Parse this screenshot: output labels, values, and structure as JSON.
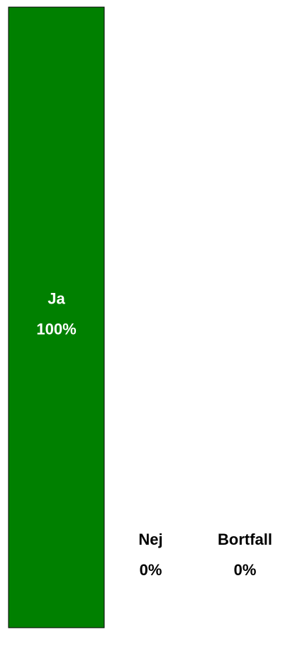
{
  "chart_data": {
    "type": "bar",
    "categories": [
      "Ja",
      "Nej",
      "Bortfall"
    ],
    "values": [
      100,
      0,
      0
    ],
    "value_labels": [
      "100%",
      "0%",
      "0%"
    ],
    "color": "#008000",
    "ylim": [
      0,
      100
    ]
  }
}
